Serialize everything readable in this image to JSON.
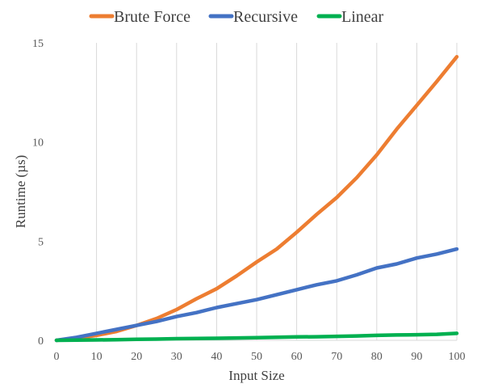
{
  "chart_data": {
    "type": "line",
    "xlabel": "Input Size",
    "ylabel": "Runtime (µs)",
    "xlim": [
      0,
      100
    ],
    "ylim": [
      0,
      15
    ],
    "x_ticks": [
      0,
      10,
      20,
      30,
      40,
      50,
      60,
      70,
      80,
      90,
      100
    ],
    "y_ticks": [
      0,
      5,
      10,
      15
    ],
    "grid": {
      "vertical": true,
      "horizontal": false
    },
    "legend_position": "top",
    "x": [
      0,
      5,
      10,
      15,
      20,
      25,
      30,
      35,
      40,
      45,
      50,
      55,
      60,
      65,
      70,
      75,
      80,
      85,
      90,
      95,
      100
    ],
    "series": [
      {
        "name": "Brute Force",
        "color": "#ED7D31",
        "values": [
          0,
          0.1,
          0.25,
          0.45,
          0.75,
          1.1,
          1.55,
          2.1,
          2.6,
          3.25,
          3.95,
          4.6,
          5.45,
          6.35,
          7.2,
          8.2,
          9.35,
          10.65,
          11.85,
          13.05,
          14.3
        ]
      },
      {
        "name": "Recursive",
        "color": "#4472C4",
        "values": [
          0,
          0.15,
          0.35,
          0.55,
          0.75,
          0.95,
          1.2,
          1.4,
          1.65,
          1.85,
          2.05,
          2.3,
          2.55,
          2.8,
          3.0,
          3.3,
          3.65,
          3.85,
          4.15,
          4.35,
          4.6
        ]
      },
      {
        "name": "Linear",
        "color": "#00B050",
        "values": [
          0,
          0.01,
          0.02,
          0.03,
          0.05,
          0.06,
          0.08,
          0.09,
          0.1,
          0.12,
          0.13,
          0.15,
          0.17,
          0.18,
          0.2,
          0.22,
          0.25,
          0.27,
          0.28,
          0.3,
          0.35
        ]
      }
    ]
  }
}
